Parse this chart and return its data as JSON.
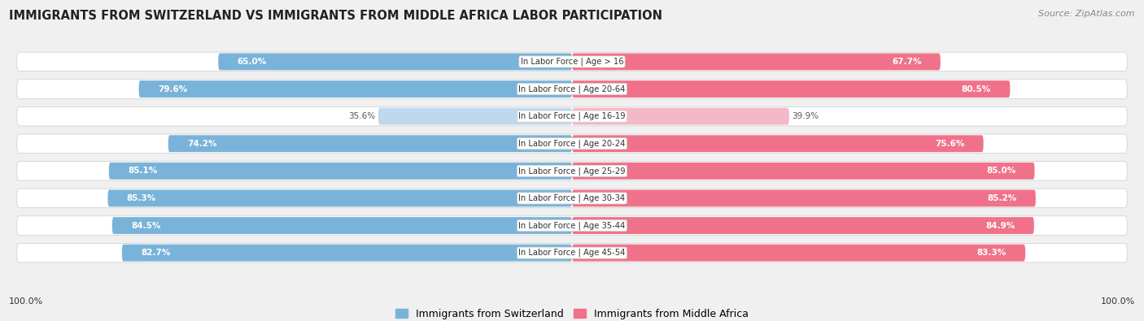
{
  "title": "IMMIGRANTS FROM SWITZERLAND VS IMMIGRANTS FROM MIDDLE AFRICA LABOR PARTICIPATION",
  "source": "Source: ZipAtlas.com",
  "categories": [
    "In Labor Force | Age > 16",
    "In Labor Force | Age 20-64",
    "In Labor Force | Age 16-19",
    "In Labor Force | Age 20-24",
    "In Labor Force | Age 25-29",
    "In Labor Force | Age 30-34",
    "In Labor Force | Age 35-44",
    "In Labor Force | Age 45-54"
  ],
  "switzerland_values": [
    65.0,
    79.6,
    35.6,
    74.2,
    85.1,
    85.3,
    84.5,
    82.7
  ],
  "middle_africa_values": [
    67.7,
    80.5,
    39.9,
    75.6,
    85.0,
    85.2,
    84.9,
    83.3
  ],
  "switzerland_color": "#7ab3d9",
  "switzerland_color_light": "#c0d8ee",
  "middle_africa_color": "#f0728a",
  "middle_africa_color_light": "#f5b8c8",
  "bar_height": 0.62,
  "background_color": "#f0f0f0",
  "row_bg_color": "#f8f8f8",
  "row_border_color": "#dddddd",
  "label1": "Immigrants from Switzerland",
  "label2": "Immigrants from Middle Africa",
  "xlim": 100.0,
  "footer_value": "100.0%"
}
